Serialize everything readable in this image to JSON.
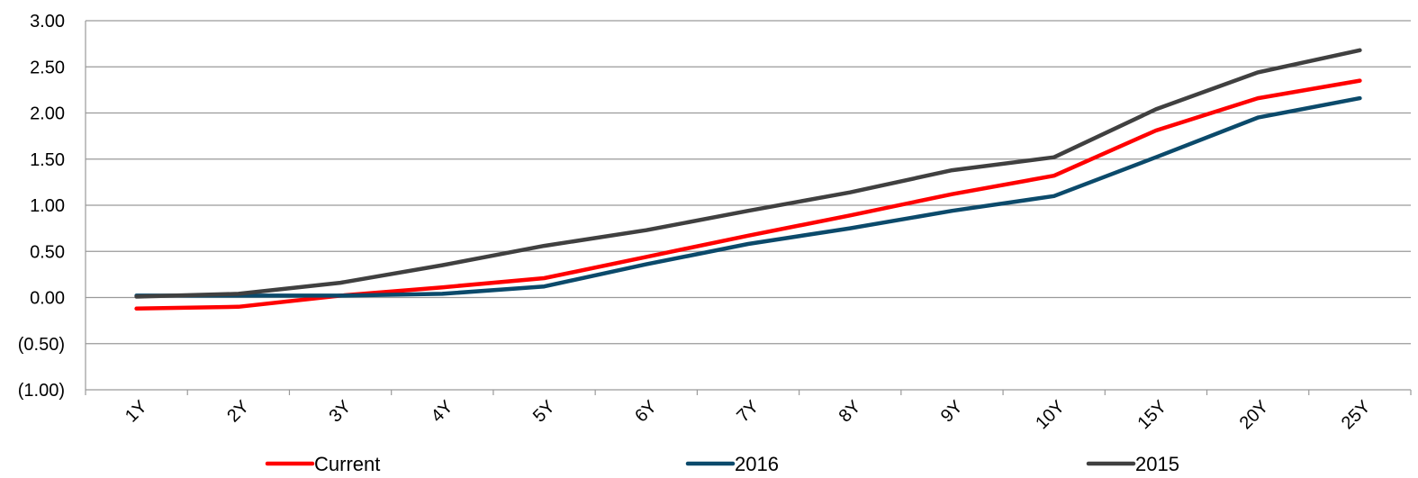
{
  "chart_data": {
    "type": "line",
    "title": "",
    "xlabel": "",
    "ylabel": "",
    "categories": [
      "1Y",
      "2Y",
      "3Y",
      "4Y",
      "5Y",
      "6Y",
      "7Y",
      "8Y",
      "9Y",
      "10Y",
      "15Y",
      "20Y",
      "25Y"
    ],
    "ylim": [
      -1.0,
      3.0
    ],
    "yticks": [
      3.0,
      2.5,
      2.0,
      1.5,
      1.0,
      0.5,
      0.0,
      -0.5,
      -1.0
    ],
    "ytick_labels": [
      "3.00",
      "2.50",
      "2.00",
      "1.50",
      "1.00",
      "0.50",
      "0.00",
      "(0.50)",
      "(1.00)"
    ],
    "grid": true,
    "legend_position": "bottom",
    "series": [
      {
        "name": "Current",
        "color": "#ff0000",
        "values": [
          -0.12,
          -0.1,
          0.02,
          0.11,
          0.21,
          0.44,
          0.67,
          0.89,
          1.12,
          1.32,
          1.81,
          2.16,
          2.35
        ]
      },
      {
        "name": "2016",
        "color": "#0b4a6b",
        "values": [
          0.02,
          0.02,
          0.02,
          0.04,
          0.12,
          0.36,
          0.58,
          0.75,
          0.94,
          1.1,
          1.52,
          1.95,
          2.16
        ]
      },
      {
        "name": "2015",
        "color": "#404040",
        "values": [
          0.01,
          0.04,
          0.16,
          0.35,
          0.56,
          0.73,
          0.94,
          1.14,
          1.38,
          1.52,
          2.04,
          2.44,
          2.68
        ]
      }
    ]
  }
}
